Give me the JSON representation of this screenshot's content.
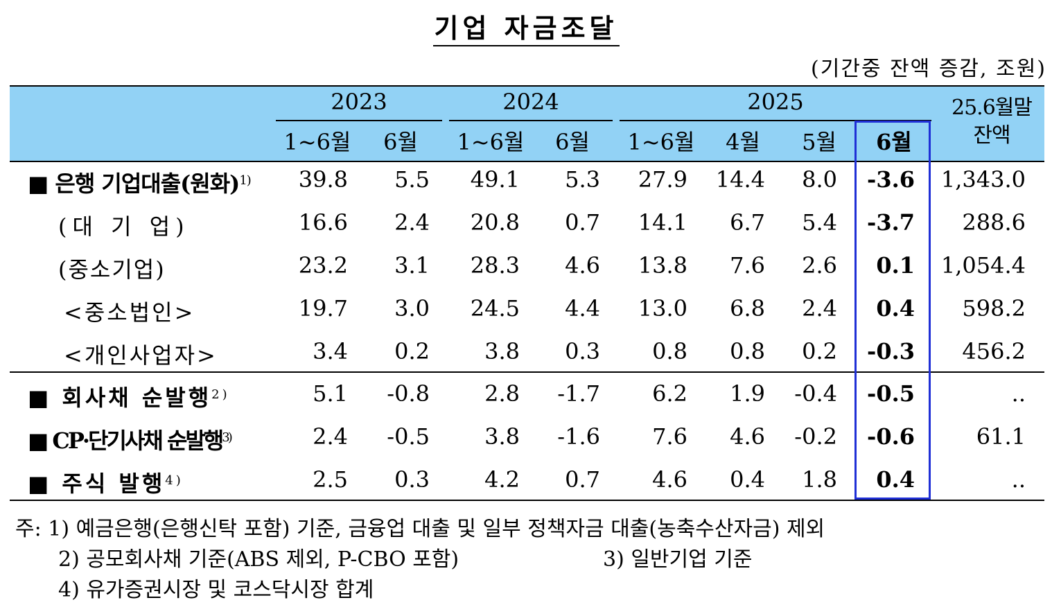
{
  "title": "기업 자금조달",
  "unit": "(기간중 잔액 증감, 조원)",
  "header": {
    "years": [
      "2023",
      "2024",
      "2025"
    ],
    "periods": [
      "1~6월",
      "6월",
      "1~6월",
      "6월",
      "1~6월",
      "4월",
      "5월",
      "6월"
    ],
    "balance_line1": "25.6월말",
    "balance_line2": "잔액"
  },
  "rows": [
    {
      "label": "■ 은행 기업대출(원화)",
      "note": "1)",
      "values": [
        "39.8",
        "5.5",
        "49.1",
        "5.3",
        "27.9",
        "14.4",
        "8.0",
        "-3.6",
        "1,343.0"
      ]
    },
    {
      "label": "(대 기 업)",
      "note": "",
      "values": [
        "16.6",
        "2.4",
        "20.8",
        "0.7",
        "14.1",
        "6.7",
        "5.4",
        "-3.7",
        "288.6"
      ]
    },
    {
      "label": "(중소기업)",
      "note": "",
      "values": [
        "23.2",
        "3.1",
        "28.3",
        "4.6",
        "13.8",
        "7.6",
        "2.6",
        "0.1",
        "1,054.4"
      ]
    },
    {
      "label": "<중소법인>",
      "note": "",
      "values": [
        "19.7",
        "3.0",
        "24.5",
        "4.4",
        "13.0",
        "6.8",
        "2.4",
        "0.4",
        "598.2"
      ]
    },
    {
      "label": "<개인사업자>",
      "note": "",
      "values": [
        "3.4",
        "0.2",
        "3.8",
        "0.3",
        "0.8",
        "0.8",
        "0.2",
        "-0.3",
        "456.2"
      ]
    },
    {
      "label": "■ 회사채 순발행",
      "note": "2)",
      "values": [
        "5.1",
        "-0.8",
        "2.8",
        "-1.7",
        "6.2",
        "1.9",
        "-0.4",
        "-0.5",
        ".."
      ]
    },
    {
      "label": "■ CP·단기사채 순발행",
      "note": "3)",
      "values": [
        "2.4",
        "-0.5",
        "3.8",
        "-1.6",
        "7.6",
        "4.6",
        "-0.2",
        "-0.6",
        "61.1"
      ]
    },
    {
      "label": "■ 주식 발행",
      "note": "4)",
      "values": [
        "2.5",
        "0.3",
        "4.2",
        "0.7",
        "4.6",
        "0.4",
        "1.8",
        "0.4",
        ".."
      ]
    }
  ],
  "notes": {
    "line1": "주: 1) 예금은행(은행신탁 포함) 기준, 금융업 대출 및 일부 정책자금 대출(농축수산자금) 제외",
    "line2a": "2) 공모회사채 기준(ABS 제외, P-CBO 포함)",
    "line2b": "3) 일반기업 기준",
    "line3": "4) 유가증권시장 및 코스닥시장 합계"
  },
  "colors": {
    "header_bg": "#92d2f5",
    "highlight_border": "#1f2fd6"
  }
}
